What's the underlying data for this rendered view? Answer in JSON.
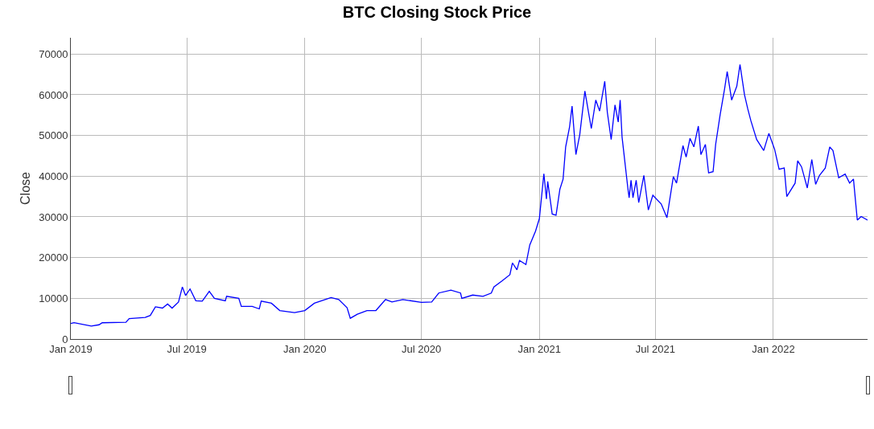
{
  "chart_data": {
    "type": "line",
    "title": "BTC Closing Stock Price",
    "ylabel": "Close",
    "x": [
      "2019-01-01",
      "2019-01-06",
      "2019-02-02",
      "2019-02-14",
      "2019-02-19",
      "2019-03-28",
      "2019-04-02",
      "2019-04-27",
      "2019-05-05",
      "2019-05-13",
      "2019-05-24",
      "2019-06-01",
      "2019-06-08",
      "2019-06-18",
      "2019-06-24",
      "2019-06-29",
      "2019-07-06",
      "2019-07-15",
      "2019-07-25",
      "2019-08-05",
      "2019-08-13",
      "2019-08-30",
      "2019-09-01",
      "2019-09-20",
      "2019-09-24",
      "2019-10-11",
      "2019-10-22",
      "2019-10-25",
      "2019-11-10",
      "2019-11-23",
      "2019-12-16",
      "2020-01-01",
      "2020-01-16",
      "2020-02-11",
      "2020-02-23",
      "2020-03-07",
      "2020-03-12",
      "2020-03-23",
      "2020-04-07",
      "2020-04-21",
      "2020-05-06",
      "2020-05-16",
      "2020-06-02",
      "2020-07-01",
      "2020-07-17",
      "2020-07-28",
      "2020-08-16",
      "2020-08-31",
      "2020-09-02",
      "2020-09-19",
      "2020-10-05",
      "2020-10-18",
      "2020-10-22",
      "2020-11-04",
      "2020-11-16",
      "2020-11-20",
      "2020-11-27",
      "2020-12-01",
      "2020-12-11",
      "2020-12-17",
      "2020-12-26",
      "2021-01-01",
      "2021-01-08",
      "2021-01-12",
      "2021-01-14",
      "2021-01-21",
      "2021-01-27",
      "2021-02-02",
      "2021-02-07",
      "2021-02-11",
      "2021-02-17",
      "2021-02-21",
      "2021-02-27",
      "2021-03-05",
      "2021-03-13",
      "2021-03-23",
      "2021-03-30",
      "2021-04-05",
      "2021-04-13",
      "2021-04-17",
      "2021-04-23",
      "2021-04-29",
      "2021-05-04",
      "2021-05-07",
      "2021-05-10",
      "2021-05-19",
      "2021-05-21",
      "2021-05-24",
      "2021-05-27",
      "2021-06-01",
      "2021-06-05",
      "2021-06-13",
      "2021-06-20",
      "2021-06-27",
      "2021-07-10",
      "2021-07-19",
      "2021-07-29",
      "2021-08-03",
      "2021-08-13",
      "2021-08-18",
      "2021-08-24",
      "2021-08-30",
      "2021-09-06",
      "2021-09-10",
      "2021-09-17",
      "2021-09-22",
      "2021-09-29",
      "2021-10-03",
      "2021-10-10",
      "2021-10-17",
      "2021-10-21",
      "2021-10-28",
      "2021-11-05",
      "2021-11-10",
      "2021-11-17",
      "2021-11-22",
      "2021-11-27",
      "2021-12-06",
      "2021-12-17",
      "2021-12-25",
      "2022-01-03",
      "2022-01-10",
      "2022-01-18",
      "2022-01-22",
      "2022-02-04",
      "2022-02-08",
      "2022-02-14",
      "2022-02-23",
      "2022-03-02",
      "2022-03-08",
      "2022-03-14",
      "2022-03-23",
      "2022-03-30",
      "2022-04-04",
      "2022-04-13",
      "2022-04-23",
      "2022-04-30",
      "2022-05-06",
      "2022-05-12",
      "2022-05-18",
      "2022-05-28"
    ],
    "series": [
      {
        "color": "#0000ff",
        "values": [
          3800,
          4000,
          3200,
          3500,
          4000,
          4100,
          5000,
          5300,
          5800,
          7900,
          7600,
          8600,
          7600,
          9100,
          12800,
          10700,
          12300,
          9400,
          9300,
          11700,
          10000,
          9400,
          10500,
          10000,
          8000,
          8000,
          7400,
          9300,
          8800,
          7000,
          6500,
          7000,
          8800,
          10200,
          9700,
          7700,
          5100,
          6100,
          7000,
          7000,
          9700,
          9100,
          9700,
          9000,
          9100,
          11300,
          12000,
          11300,
          10000,
          10800,
          10500,
          11300,
          12800,
          14300,
          15800,
          18700,
          17000,
          19300,
          18300,
          23100,
          26500,
          29600,
          40600,
          34400,
          38700,
          30700,
          30400,
          36800,
          39300,
          47200,
          52000,
          57200,
          45300,
          50200,
          60900,
          51700,
          58700,
          56000,
          63300,
          55700,
          49000,
          57500,
          53300,
          58700,
          49600,
          37100,
          34700,
          39000,
          34700,
          39000,
          33500,
          40200,
          31700,
          35300,
          33200,
          29800,
          39900,
          38300,
          47500,
          44700,
          49300,
          47200,
          52300,
          45300,
          47800,
          40800,
          41100,
          47800,
          55100,
          61500,
          65700,
          58700,
          62100,
          67400,
          60000,
          56600,
          53600,
          49000,
          46300,
          50500,
          46600,
          41700,
          42000,
          35000,
          38300,
          43800,
          42300,
          37100,
          44100,
          38000,
          40200,
          42000,
          47200,
          46300,
          39600,
          40500,
          38300,
          39300,
          29200,
          30100,
          29200
        ]
      }
    ],
    "xlim": [
      "2019-01-01",
      "2022-05-28"
    ],
    "xticks": [
      {
        "value": "2019-01-01",
        "label": "Jan 2019"
      },
      {
        "value": "2019-07-01",
        "label": "Jul 2019"
      },
      {
        "value": "2020-01-01",
        "label": "Jan 2020"
      },
      {
        "value": "2020-07-01",
        "label": "Jul 2020"
      },
      {
        "value": "2021-01-01",
        "label": "Jan 2021"
      },
      {
        "value": "2021-07-01",
        "label": "Jul 2021"
      },
      {
        "value": "2022-01-01",
        "label": "Jan 2022"
      }
    ],
    "ylim": [
      0,
      74000
    ],
    "yticks": [
      0,
      10000,
      20000,
      30000,
      40000,
      50000,
      60000,
      70000
    ],
    "grid": true,
    "marker": "none",
    "line_style": "solid"
  }
}
